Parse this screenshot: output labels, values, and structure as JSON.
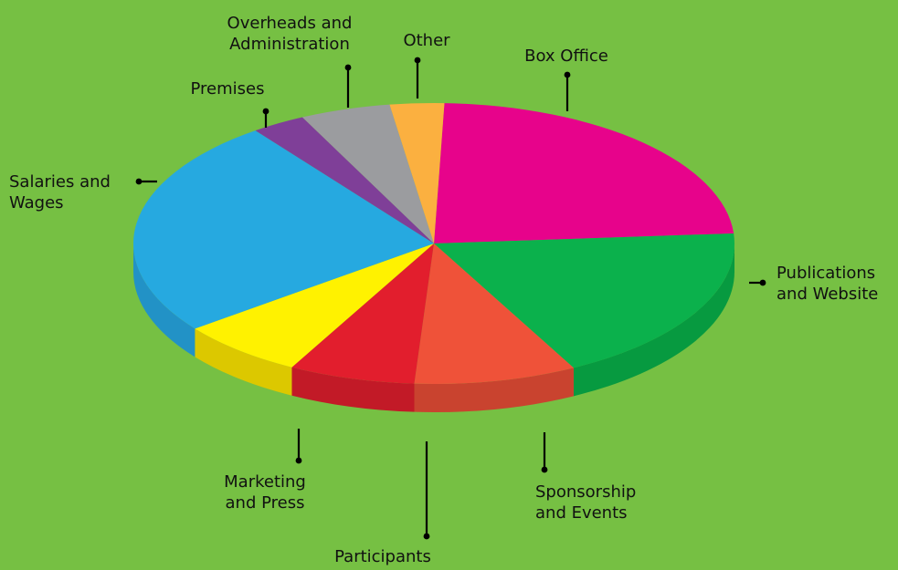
{
  "chart_data": {
    "type": "pie",
    "categories": [
      "Box Office",
      "Publications and Website",
      "Sponsorship and Events",
      "Participants",
      "Marketing and Press",
      "Salaries and Wages",
      "Premises",
      "Overheads and Administration",
      "Other"
    ],
    "values": [
      24,
      19,
      9,
      7,
      7,
      26,
      3,
      5,
      3
    ],
    "units": "percent (estimated)",
    "title": "",
    "legend": "callout labels around pie",
    "labels": [
      [
        "Box Office"
      ],
      [
        "Publications",
        "and Website"
      ],
      [
        "Sponsorship",
        "and Events"
      ],
      [
        "Participants"
      ],
      [
        "Marketing",
        "and Press"
      ],
      [
        "Salaries and",
        "Wages"
      ],
      [
        "Premises"
      ],
      [
        "Overheads and",
        "Administration"
      ],
      [
        "Other"
      ]
    ],
    "colors": [
      "#e7038b",
      "#0bb14c",
      "#ef5239",
      "#e21e2d",
      "#fff200",
      "#26a9e0",
      "#7f3f98",
      "#9b9c9f",
      "#fbb040"
    ],
    "side_colors": [
      "#b8026e",
      "#079a40",
      "#c9432f",
      "#c21a27",
      "#dcc800",
      "#2292c6",
      "#6a3480",
      "#84858a",
      "#d99530"
    ]
  }
}
